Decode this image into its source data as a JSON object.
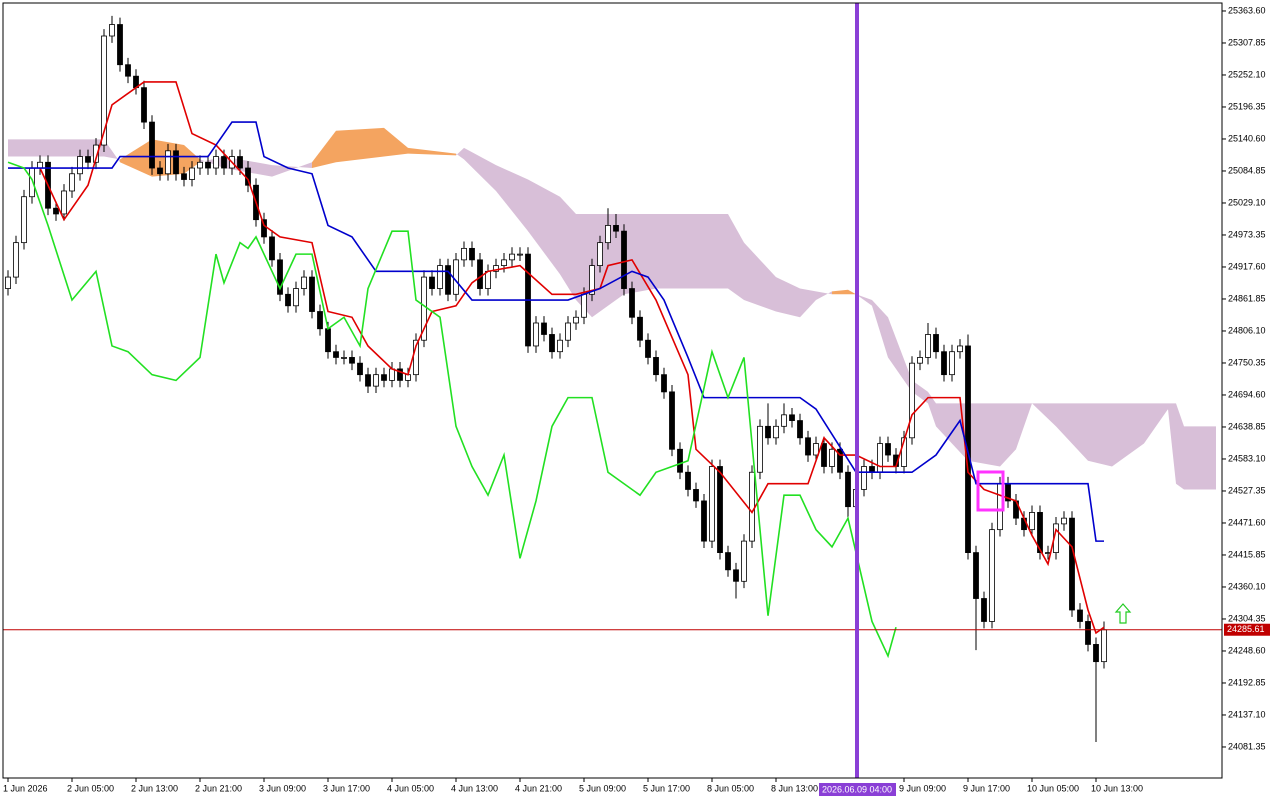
{
  "chart_data": {
    "type": "candlestick",
    "xlim": [
      -0.625,
      151.75
    ],
    "ylim": [
      24027.3,
      25377.5
    ],
    "xticks": [
      {
        "value": 0,
        "label": "1 Jun 2026"
      },
      {
        "value": 8,
        "label": "2 Jun 05:00"
      },
      {
        "value": 16,
        "label": "2 Jun 13:00"
      },
      {
        "value": 24,
        "label": "2 Jun 21:00"
      },
      {
        "value": 32,
        "label": "3 Jun 09:00"
      },
      {
        "value": 40,
        "label": "3 Jun 17:00"
      },
      {
        "value": 48,
        "label": "4 Jun 05:00"
      },
      {
        "value": 56,
        "label": "4 Jun 13:00"
      },
      {
        "value": 64,
        "label": "4 Jun 21:00"
      },
      {
        "value": 72,
        "label": "5 Jun 09:00"
      },
      {
        "value": 80,
        "label": "5 Jun 17:00"
      },
      {
        "value": 88,
        "label": "8 Jun 05:00"
      },
      {
        "value": 96,
        "label": "8 Jun 13:00"
      },
      {
        "value": 112,
        "label": "9 Jun 09:00"
      },
      {
        "value": 120,
        "label": "9 Jun 17:00"
      },
      {
        "value": 128,
        "label": "10 Jun 05:00"
      },
      {
        "value": 136,
        "label": "10 Jun 13:00"
      }
    ],
    "yticks": [
      {
        "value": 25363.6,
        "label": "25363.60"
      },
      25307.85,
      {
        "value": 25252.1,
        "label": "25252.10"
      },
      25196.35,
      {
        "value": 25140.6,
        "label": "25140.60"
      },
      25084.85,
      {
        "value": 25029.1,
        "label": "25029.10"
      },
      24973.35,
      {
        "value": 24917.6,
        "label": "24917.60"
      },
      24861.85,
      {
        "value": 24806.1,
        "label": "24806.10"
      },
      24750.35,
      {
        "value": 24694.6,
        "label": "24694.60"
      },
      24638.85,
      {
        "value": 24583.1,
        "label": "24583.10"
      },
      24527.35,
      {
        "value": 24471.6,
        "label": "24471.60"
      },
      24415.85,
      {
        "value": 24360.1,
        "label": "24360.10"
      },
      24304.35,
      {
        "value": 24248.6,
        "label": "24248.60"
      },
      24192.85,
      {
        "value": 24137.1,
        "label": "24137.10"
      },
      24081.35
    ],
    "cursor_label": "2026.06.09 04:00",
    "last_price": 24285.61,
    "last_price_color": "#c00000",
    "up_color": "#ffffff",
    "down_color": "#000000",
    "open": [
      24880,
      24900,
      24960,
      25040,
      25090,
      25100,
      25020,
      25010,
      25050,
      25080,
      25110,
      25100,
      25130,
      25320,
      25340,
      25270,
      25250,
      25230,
      25170,
      25090,
      25080,
      25120,
      25080,
      25070,
      25090,
      25100,
      25090,
      25110,
      25090,
      25110,
      25090,
      25060,
      25000,
      24970,
      24930,
      24870,
      24850,
      24880,
      24900,
      24840,
      24810,
      24770,
      24760,
      24760,
      24750,
      24730,
      24710,
      24730,
      24720,
      24740,
      24720,
      24730,
      24790,
      24900,
      24880,
      24920,
      24870,
      24930,
      24950,
      24930,
      24880,
      24910,
      24920,
      24930,
      24940,
      24940,
      24780,
      24820,
      24800,
      24770,
      24790,
      24820,
      24830,
      24870,
      24920,
      24960,
      24990,
      24980,
      24880,
      24830,
      24790,
      24760,
      24730,
      24700,
      24600,
      24560,
      24530,
      24510,
      24440,
      24570,
      24420,
      24390,
      24370,
      24440,
      24560,
      24640,
      24620,
      24640,
      24660,
      24650,
      24620,
      24590,
      24610,
      24570,
      24600,
      24560,
      24500,
      24530,
      24570,
      24560,
      24610,
      24590,
      24570,
      24620,
      24750,
      24760,
      24800,
      24770,
      24730,
      24770,
      24780,
      24420,
      24340,
      24300,
      24460,
      24540,
      24510,
      24480,
      24460,
      24490,
      24420,
      24420,
      24470,
      24480,
      24320,
      24300,
      24260,
      24230
    ],
    "high": [
      24912,
      24972,
      25052,
      25102,
      25112,
      25112,
      25032,
      25062,
      25092,
      25122,
      25122,
      25142,
      25332,
      25355,
      25352,
      25282,
      25262,
      25242,
      25182,
      25102,
      25132,
      25132,
      25092,
      25102,
      25112,
      25112,
      25122,
      25122,
      25122,
      25122,
      25102,
      25072,
      25012,
      24982,
      24942,
      24882,
      24892,
      24912,
      24912,
      24852,
      24822,
      24782,
      24772,
      24772,
      24762,
      24742,
      24742,
      24742,
      24752,
      24752,
      24742,
      24802,
      24912,
      24912,
      24932,
      24932,
      24942,
      24962,
      24962,
      24942,
      24922,
      24932,
      24942,
      24952,
      24952,
      24952,
      24832,
      24832,
      24812,
      24802,
      24832,
      24842,
      24882,
      24932,
      24972,
      25020,
      25010,
      24992,
      24892,
      24842,
      24802,
      24772,
      24742,
      24712,
      24612,
      24572,
      24542,
      24522,
      24582,
      24582,
      24432,
      24402,
      24452,
      24572,
      24652,
      24680,
      24652,
      24680,
      24672,
      24662,
      24632,
      24622,
      24622,
      24612,
      24612,
      24572,
      24542,
      24582,
      24582,
      24622,
      24622,
      24602,
      24632,
      24762,
      24772,
      24820,
      24812,
      24782,
      24782,
      24792,
      24800,
      24432,
      24352,
      24472,
      24552,
      24552,
      24522,
      24492,
      24502,
      24502,
      24432,
      24482,
      24492,
      24492,
      24332,
      24312,
      24272,
      24300
    ],
    "low": [
      24868,
      24888,
      24948,
      25028,
      25078,
      25008,
      24998,
      24998,
      25038,
      25068,
      25088,
      25088,
      25118,
      25308,
      25258,
      25238,
      25218,
      25158,
      25078,
      25068,
      25068,
      25068,
      25058,
      25058,
      25078,
      25078,
      25078,
      25078,
      25078,
      25078,
      25048,
      24988,
      24958,
      24918,
      24858,
      24838,
      24838,
      24868,
      24828,
      24798,
      24758,
      24748,
      24748,
      24738,
      24718,
      24698,
      24698,
      24708,
      24708,
      24708,
      24708,
      24718,
      24778,
      24868,
      24868,
      24858,
      24858,
      24918,
      24918,
      24868,
      24868,
      24898,
      24908,
      24918,
      24928,
      24768,
      24768,
      24788,
      24758,
      24758,
      24778,
      24808,
      24818,
      24858,
      24908,
      24948,
      24968,
      24868,
      24818,
      24778,
      24748,
      24718,
      24688,
      24588,
      24548,
      24518,
      24498,
      24428,
      24428,
      24408,
      24378,
      24340,
      24358,
      24428,
      24548,
      24608,
      24608,
      24628,
      24638,
      24608,
      24578,
      24578,
      24558,
      24558,
      24548,
      24480,
      24488,
      24518,
      24548,
      24548,
      24578,
      24558,
      24558,
      24608,
      24738,
      24748,
      24758,
      24718,
      24718,
      24758,
      24408,
      24250,
      24288,
      24288,
      24448,
      24498,
      24468,
      24448,
      24448,
      24408,
      24408,
      24408,
      24458,
      24308,
      24288,
      24248,
      24090,
      24218
    ],
    "close": [
      24900,
      24960,
      25040,
      25090,
      25100,
      25020,
      25010,
      25050,
      25080,
      25110,
      25100,
      25130,
      25320,
      25340,
      25270,
      25250,
      25230,
      25170,
      25090,
      25080,
      25120,
      25080,
      25070,
      25090,
      25100,
      25090,
      25110,
      25090,
      25110,
      25090,
      25060,
      25000,
      24970,
      24930,
      24870,
      24850,
      24880,
      24900,
      24840,
      24810,
      24770,
      24760,
      24760,
      24750,
      24730,
      24710,
      24730,
      24720,
      24740,
      24720,
      24730,
      24790,
      24900,
      24880,
      24920,
      24870,
      24930,
      24950,
      24930,
      24880,
      24910,
      24920,
      24930,
      24940,
      24940,
      24780,
      24820,
      24800,
      24770,
      24790,
      24820,
      24830,
      24870,
      24920,
      24960,
      24990,
      24980,
      24880,
      24830,
      24790,
      24760,
      24730,
      24700,
      24600,
      24560,
      24530,
      24510,
      24440,
      24570,
      24420,
      24390,
      24370,
      24440,
      24560,
      24640,
      24620,
      24640,
      24660,
      24650,
      24620,
      24590,
      24610,
      24570,
      24600,
      24560,
      24500,
      24530,
      24570,
      24560,
      24610,
      24590,
      24570,
      24620,
      24750,
      24760,
      24800,
      24770,
      24730,
      24770,
      24780,
      24420,
      24340,
      24300,
      24460,
      24540,
      24510,
      24480,
      24460,
      24490,
      24420,
      24420,
      24470,
      24480,
      24320,
      24300,
      24260,
      24230,
      24285.61
    ],
    "cloud": {
      "color_up": "#f4a460",
      "color_down": "#d8bfd8",
      "x": [
        0,
        12,
        14,
        18,
        22,
        24,
        27,
        33,
        38,
        41,
        47,
        50,
        56,
        57,
        61,
        65,
        69,
        71,
        73,
        77,
        81,
        90,
        92,
        96,
        99,
        101,
        103,
        105,
        106,
        108,
        110,
        113,
        115,
        116,
        120,
        124,
        126,
        128,
        131,
        135,
        138,
        142,
        145,
        146,
        147,
        151
      ],
      "span_a": [
        25110,
        25110,
        25105,
        25140,
        25130,
        25105,
        25090,
        25075,
        25100,
        25155,
        25160,
        25125,
        25115,
        25105,
        25050,
        24980,
        24905,
        24860,
        24830,
        24870,
        24880,
        24880,
        24860,
        24840,
        24830,
        24860,
        24875,
        24878,
        24870,
        24850,
        24760,
        24700,
        24680,
        24640,
        24580,
        24570,
        24600,
        24680,
        24640,
        24580,
        24570,
        24610,
        24670,
        24540,
        24530,
        24530
      ],
      "span_b": [
        25140,
        25140,
        25100,
        25075,
        25080,
        25100,
        25110,
        25095,
        25090,
        25100,
        25110,
        25115,
        25112,
        25125,
        25095,
        25070,
        25040,
        25010,
        25010,
        25010,
        25010,
        25010,
        24960,
        24900,
        24880,
        24875,
        24870,
        24870,
        24870,
        24860,
        24830,
        24720,
        24700,
        24680,
        24680,
        24680,
        24680,
        24680,
        24680,
        24680,
        24680,
        24680,
        24680,
        24680,
        24640,
        24640
      ]
    },
    "series": [
      {
        "color": "#e00000",
        "x": [
          4,
          7,
          10,
          13,
          17,
          21,
          23,
          26,
          30,
          32,
          34,
          38,
          40,
          43,
          45,
          48,
          50,
          51,
          53,
          56,
          58,
          60,
          64,
          68,
          71,
          74,
          75,
          78,
          81,
          85,
          86,
          89,
          93,
          95,
          100,
          102,
          104,
          106,
          109,
          111,
          113,
          115,
          119,
          120,
          122,
          124,
          126,
          128,
          130,
          131,
          133,
          135,
          136,
          137
        ],
        "values": [
          25090,
          25000,
          25060,
          25200,
          25240,
          25240,
          25150,
          25130,
          25070,
          24990,
          24970,
          24960,
          24840,
          24830,
          24780,
          24740,
          24730,
          24780,
          24840,
          24850,
          24890,
          24910,
          24920,
          24870,
          24870,
          24880,
          24920,
          24930,
          24860,
          24730,
          24600,
          24560,
          24490,
          24540,
          24540,
          24620,
          24590,
          24590,
          24570,
          24570,
          24660,
          24690,
          24690,
          24560,
          24530,
          24520,
          24510,
          24450,
          24400,
          24460,
          24430,
          24320,
          24280,
          24290
        ]
      },
      {
        "color": "#0000cc",
        "x": [
          0,
          13,
          14,
          25,
          28,
          31,
          32,
          35,
          38,
          40,
          43,
          46,
          55,
          58,
          70,
          74,
          78,
          80,
          82,
          85,
          87,
          99,
          101,
          106,
          113,
          116,
          119,
          121,
          135,
          136,
          137
        ],
        "values": [
          25090,
          25090,
          25110,
          25110,
          25170,
          25170,
          25110,
          25090,
          25080,
          24990,
          24970,
          24910,
          24910,
          24860,
          24860,
          24880,
          24910,
          24900,
          24860,
          24760,
          24690,
          24690,
          24670,
          24560,
          24560,
          24590,
          24650,
          24540,
          24540,
          24440,
          24440
        ]
      },
      {
        "color": "#22e022",
        "x": [
          0,
          2,
          3,
          5,
          8,
          11,
          13,
          15,
          18,
          21,
          24,
          26,
          27,
          29,
          30,
          31,
          34,
          36,
          38,
          40,
          42,
          44,
          45,
          48,
          50,
          51,
          54,
          56,
          58,
          60,
          62,
          64,
          66,
          68,
          70,
          73,
          75,
          79,
          81,
          85,
          88,
          90,
          92,
          95,
          97,
          99,
          101,
          103,
          105,
          106,
          108,
          110,
          111
        ],
        "values": [
          25100,
          25090,
          25070,
          24990,
          24860,
          24910,
          24780,
          24770,
          24730,
          24720,
          24760,
          24940,
          24890,
          24960,
          24950,
          24970,
          24880,
          24940,
          24940,
          24810,
          24830,
          24780,
          24880,
          24980,
          24980,
          24860,
          24830,
          24640,
          24570,
          24520,
          24590,
          24410,
          24510,
          24640,
          24690,
          24690,
          24560,
          24520,
          24560,
          24580,
          24770,
          24690,
          24760,
          24310,
          24520,
          24520,
          24460,
          24430,
          24480,
          24420,
          24300,
          24240,
          24290
        ]
      }
    ]
  }
}
